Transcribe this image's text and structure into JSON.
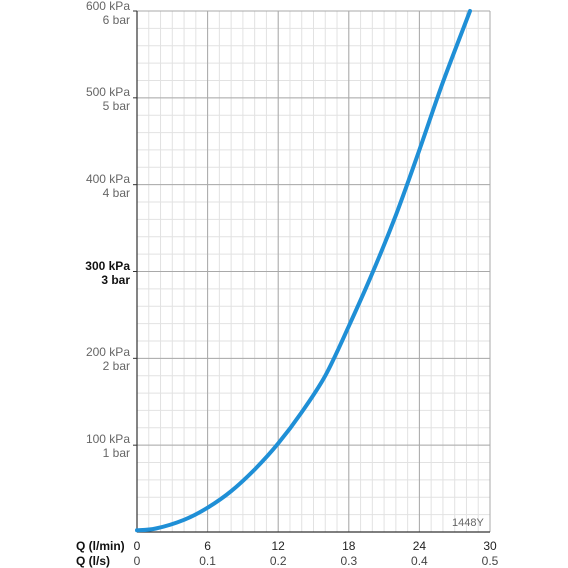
{
  "chart_data": {
    "type": "line",
    "x_primary": {
      "label": "Q (l/min)",
      "ticks": [
        "0",
        "6",
        "12",
        "18",
        "24",
        "30"
      ],
      "range": [
        0,
        30
      ]
    },
    "x_secondary": {
      "label": "Q (l/s)",
      "ticks": [
        "0",
        "0.1",
        "0.2",
        "0.3",
        "0.4",
        "0.5"
      ],
      "range": [
        0,
        0.5
      ]
    },
    "y_axis": {
      "range": [
        0,
        600
      ],
      "ticks": [
        {
          "value": 100,
          "kpa": "100 kPa",
          "bar": "1 bar",
          "bold": false
        },
        {
          "value": 200,
          "kpa": "200 kPa",
          "bar": "2 bar",
          "bold": false
        },
        {
          "value": 300,
          "kpa": "300 kPa",
          "bar": "3 bar",
          "bold": true
        },
        {
          "value": 400,
          "kpa": "400 kPa",
          "bar": "4 bar",
          "bold": false
        },
        {
          "value": 500,
          "kpa": "500 kPa",
          "bar": "5 bar",
          "bold": false
        },
        {
          "value": 600,
          "kpa": "600 kPa",
          "bar": "6 bar",
          "bold": false
        }
      ]
    },
    "grid": true,
    "series": [
      {
        "color": "#1f8fd6",
        "x": [
          0,
          1.6,
          4,
          6,
          8,
          10,
          12,
          14,
          16,
          18,
          20,
          22,
          24,
          26,
          28.3
        ],
        "y": [
          2,
          4,
          14,
          28,
          47,
          72,
          102,
          138,
          180,
          237,
          298,
          365,
          440,
          518,
          600
        ]
      }
    ],
    "annotations": [
      "1448Y"
    ]
  }
}
